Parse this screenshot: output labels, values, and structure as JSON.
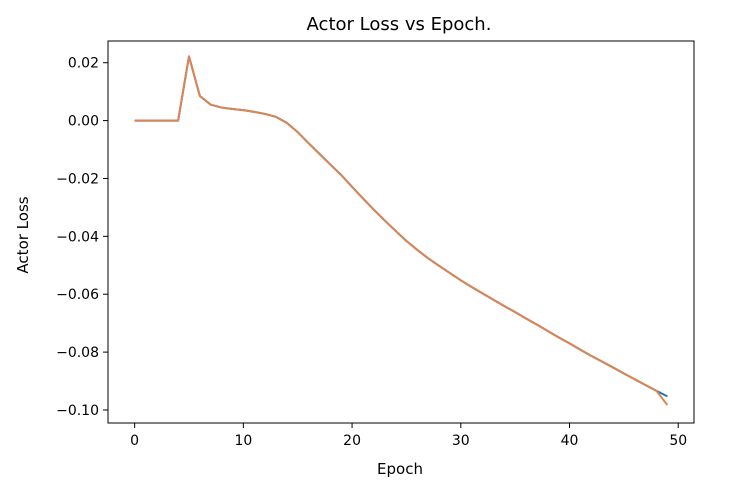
{
  "chart_data": {
    "type": "line",
    "title": "Actor Loss vs Epoch.",
    "xlabel": "Epoch",
    "ylabel": "Actor Loss",
    "xlim": [
      -2.45,
      51.45
    ],
    "ylim": [
      -0.1045,
      0.0275
    ],
    "xticks": [
      0,
      10,
      20,
      30,
      40,
      50
    ],
    "yticks": [
      0.02,
      0.0,
      -0.02,
      -0.04,
      -0.06,
      -0.08,
      -0.1
    ],
    "xtick_labels": [
      "0",
      "10",
      "20",
      "30",
      "40",
      "50"
    ],
    "ytick_labels": [
      "0.02",
      "0.00",
      "−0.02",
      "−0.04",
      "−0.06",
      "−0.08",
      "−0.10"
    ],
    "grid": false,
    "series": [
      {
        "color": "#1f77b4",
        "x": [
          0,
          1,
          2,
          3,
          4,
          5,
          6,
          7,
          8,
          9,
          10,
          11,
          12,
          13,
          14,
          15,
          16,
          17,
          18,
          19,
          20,
          21,
          22,
          23,
          24,
          25,
          26,
          27,
          28,
          29,
          30,
          31,
          32,
          33,
          34,
          35,
          36,
          37,
          38,
          39,
          40,
          41,
          42,
          43,
          44,
          45,
          46,
          47,
          48,
          49
        ],
        "y": [
          0.0,
          0.0,
          0.0,
          0.0,
          0.0,
          0.0222,
          0.0085,
          0.0055,
          0.0045,
          0.004,
          0.0036,
          0.003,
          0.0023,
          0.0013,
          -0.0008,
          -0.004,
          -0.0078,
          -0.0115,
          -0.0152,
          -0.0188,
          -0.0229,
          -0.0269,
          -0.0308,
          -0.0345,
          -0.0381,
          -0.0416,
          -0.0447,
          -0.0476,
          -0.0502,
          -0.0527,
          -0.0552,
          -0.0575,
          -0.0597,
          -0.0619,
          -0.0641,
          -0.0662,
          -0.0684,
          -0.0705,
          -0.0727,
          -0.0749,
          -0.077,
          -0.0792,
          -0.0813,
          -0.0833,
          -0.0853,
          -0.0874,
          -0.0894,
          -0.0914,
          -0.0934,
          -0.0953
        ]
      },
      {
        "color": "#dd8452",
        "x": [
          0,
          1,
          2,
          3,
          4,
          5,
          6,
          7,
          8,
          9,
          10,
          11,
          12,
          13,
          14,
          15,
          16,
          17,
          18,
          19,
          20,
          21,
          22,
          23,
          24,
          25,
          26,
          27,
          28,
          29,
          30,
          31,
          32,
          33,
          34,
          35,
          36,
          37,
          38,
          39,
          40,
          41,
          42,
          43,
          44,
          45,
          46,
          47,
          48,
          49
        ],
        "y": [
          0.0,
          0.0,
          0.0,
          0.0,
          0.0,
          0.0222,
          0.0085,
          0.0055,
          0.0045,
          0.004,
          0.0036,
          0.003,
          0.0023,
          0.0013,
          -0.0008,
          -0.004,
          -0.0078,
          -0.0115,
          -0.0152,
          -0.0188,
          -0.0229,
          -0.0269,
          -0.0308,
          -0.0345,
          -0.0381,
          -0.0416,
          -0.0447,
          -0.0476,
          -0.0502,
          -0.0527,
          -0.0552,
          -0.0575,
          -0.0597,
          -0.0619,
          -0.0641,
          -0.0662,
          -0.0684,
          -0.0705,
          -0.0727,
          -0.0749,
          -0.077,
          -0.0792,
          -0.0813,
          -0.0833,
          -0.0853,
          -0.0874,
          -0.0894,
          -0.0914,
          -0.0934,
          -0.0983
        ]
      }
    ]
  }
}
